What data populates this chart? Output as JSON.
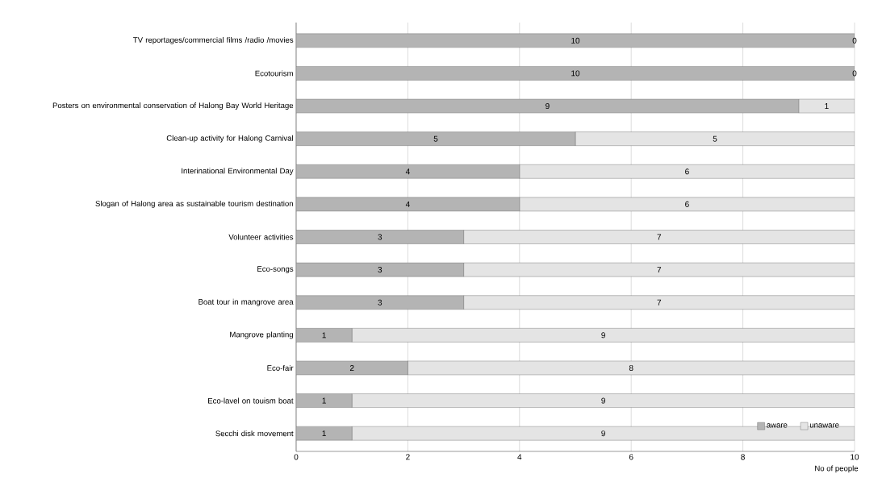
{
  "chart_data": {
    "type": "bar",
    "orientation": "horizontal",
    "stacked": true,
    "categories": [
      "TV reportages/commercial films /radio /movies",
      "Ecotourism",
      "Posters on environmental conservation of Halong Bay World Heritage",
      "Clean-up activity for Halong Carnival",
      "Interinational Environmental Day",
      "Slogan of Halong area as sustainable tourism destination",
      "Volunteer activities",
      "Eco-songs",
      "Boat tour in mangrove area",
      "Mangrove planting",
      "Eco-fair",
      "Eco-lavel on touism boat",
      "Secchi disk movement"
    ],
    "series": [
      {
        "name": "aware",
        "color": "#b4b4b4",
        "values": [
          10,
          10,
          9,
          5,
          4,
          4,
          3,
          3,
          3,
          1,
          2,
          1,
          1
        ]
      },
      {
        "name": "unaware",
        "color": "#e4e4e4",
        "values": [
          0,
          0,
          1,
          5,
          6,
          6,
          7,
          7,
          7,
          9,
          8,
          9,
          9
        ]
      }
    ],
    "xlabel": "No of people",
    "xlim": [
      0,
      10
    ],
    "xticks": [
      0,
      2,
      4,
      6,
      8,
      10
    ],
    "grid": "x",
    "legend": "bottom right",
    "data_labels": true
  }
}
